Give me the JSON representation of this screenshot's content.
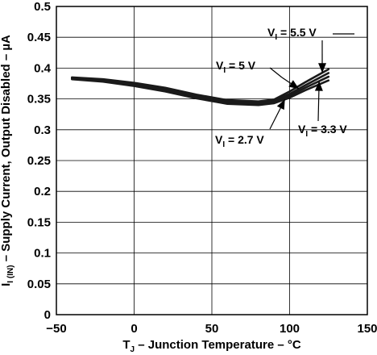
{
  "chart_data": {
    "type": "line",
    "xlabel": {
      "main": "T",
      "sub": "J",
      "rest": " – Junction Temperature – °C"
    },
    "ylabel": {
      "main": "I",
      "sub": "I (IN)",
      "rest": " – Supply Current, Output Disabled – µA"
    },
    "xlim": [
      -50,
      150
    ],
    "ylim": [
      0,
      0.5
    ],
    "x_ticks": [
      "−50",
      "0",
      "50",
      "100",
      "150"
    ],
    "x_tick_values": [
      -50,
      0,
      50,
      100,
      150
    ],
    "y_ticks": [
      "0",
      "0.05",
      "0.1",
      "0.15",
      "0.2",
      "0.25",
      "0.3",
      "0.35",
      "0.4",
      "0.45",
      "0.5"
    ],
    "y_tick_values": [
      0,
      0.05,
      0.1,
      0.15,
      0.2,
      0.25,
      0.3,
      0.35,
      0.4,
      0.45,
      0.5
    ],
    "grid": true,
    "series": [
      {
        "name": "V_I = 5.5 V",
        "x": [
          -40,
          -20,
          0,
          20,
          40,
          60,
          80,
          90,
          100,
          110,
          125
        ],
        "y": [
          0.385,
          0.382,
          0.376,
          0.368,
          0.357,
          0.348,
          0.346,
          0.349,
          0.362,
          0.377,
          0.398
        ]
      },
      {
        "name": "V_I = 5 V",
        "x": [
          -40,
          -20,
          0,
          20,
          40,
          60,
          80,
          90,
          100,
          110,
          125
        ],
        "y": [
          0.384,
          0.381,
          0.374,
          0.366,
          0.355,
          0.346,
          0.344,
          0.347,
          0.358,
          0.372,
          0.392
        ]
      },
      {
        "name": "V_I = 3.3 V",
        "x": [
          -40,
          -20,
          0,
          20,
          40,
          60,
          80,
          90,
          100,
          110,
          125
        ],
        "y": [
          0.383,
          0.379,
          0.373,
          0.364,
          0.353,
          0.344,
          0.342,
          0.345,
          0.355,
          0.368,
          0.386
        ]
      },
      {
        "name": "V_I = 2.7 V",
        "x": [
          -40,
          -20,
          0,
          20,
          40,
          60,
          80,
          90,
          100,
          110,
          125
        ],
        "y": [
          0.382,
          0.378,
          0.371,
          0.362,
          0.351,
          0.342,
          0.34,
          0.343,
          0.352,
          0.364,
          0.38
        ]
      }
    ],
    "annotations": [
      {
        "main": "V",
        "sub": "I",
        "rest": " = 5.5 V",
        "series": 0
      },
      {
        "main": "V",
        "sub": "I",
        "rest": " = 5 V",
        "series": 1
      },
      {
        "main": "V",
        "sub": "I",
        "rest": " = 3.3 V",
        "series": 2
      },
      {
        "main": "V",
        "sub": "I",
        "rest": " = 2.7 V",
        "series": 3
      }
    ]
  }
}
